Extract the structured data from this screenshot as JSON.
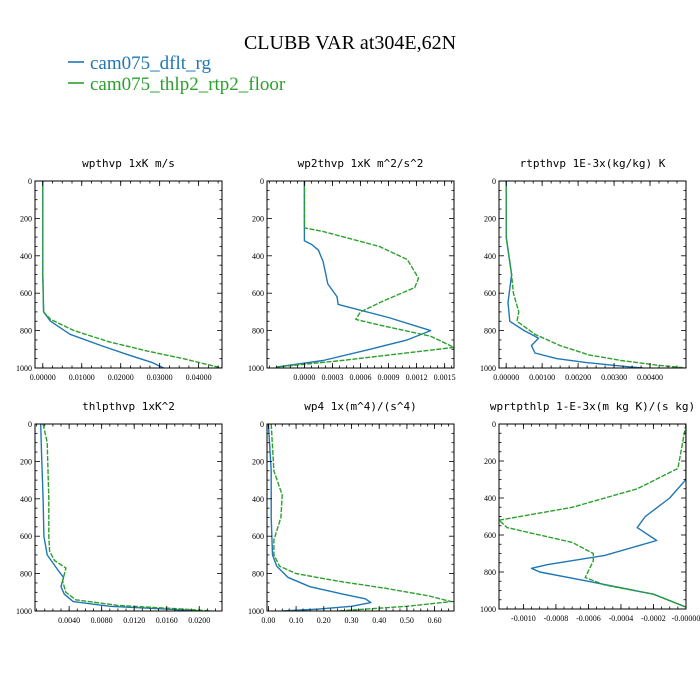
{
  "title": "CLUBB VAR at304E,62N",
  "legend": [
    {
      "label": "cam075_dflt_rg",
      "color": "#1f77b4"
    },
    {
      "label": "cam075_thlp2_rtp2_floor",
      "color": "#2ca02c"
    }
  ],
  "chart_data": [
    {
      "type": "line",
      "title": "wpthvp   1xK m/s",
      "ylim": [
        1000,
        0
      ],
      "yticks": [
        "0",
        "200",
        "400",
        "600",
        "800",
        "1000"
      ],
      "xlim": [
        -0.002,
        0.046
      ],
      "xticks": [
        0,
        0.01,
        0.02,
        0.03,
        0.04
      ],
      "xtick_labels": [
        "0.00000",
        "0.01000",
        "0.02000",
        "0.03000",
        "0.04000"
      ],
      "series": [
        {
          "color": "#1f77b4",
          "x": [
            0,
            0,
            0,
            0.0002,
            0.002,
            0.007,
            0.015,
            0.022,
            0.028,
            0.031
          ],
          "y": [
            0,
            200,
            500,
            700,
            750,
            820,
            880,
            930,
            970,
            1000
          ]
        },
        {
          "color": "#2ca02c",
          "x": [
            0,
            0,
            0,
            0.0002,
            0.002,
            0.008,
            0.017,
            0.027,
            0.036,
            0.043,
            0.046
          ],
          "y": [
            0,
            200,
            500,
            700,
            740,
            800,
            860,
            910,
            950,
            985,
            1000
          ]
        }
      ]
    },
    {
      "type": "line",
      "title": "wp2thvp   1xK m^2/s^2",
      "ylim": [
        1000,
        0
      ],
      "yticks": [
        "0",
        "200",
        "400",
        "600",
        "800",
        "1000"
      ],
      "xlim": [
        -0.0004,
        0.0016
      ],
      "xticks": [
        0,
        0.0003,
        0.0006,
        0.0009,
        0.0012,
        0.0015
      ],
      "xtick_labels": [
        "0.0000",
        "0.0003",
        "0.0006",
        "0.0009",
        "0.0012",
        "0.0015"
      ],
      "series": [
        {
          "color": "#1f77b4",
          "x": [
            0,
            0,
            8e-05,
            0.00015,
            0.0002,
            0.00025,
            0.00035,
            0.00036,
            0.0009,
            0.00135,
            0.0011,
            0.0007,
            0.0002,
            -0.0003
          ],
          "y": [
            0,
            320,
            340,
            370,
            430,
            550,
            620,
            660,
            730,
            800,
            850,
            900,
            960,
            995
          ]
        },
        {
          "color": "#2ca02c",
          "x": [
            0,
            0,
            0.0002,
            0.0008,
            0.0011,
            0.00122,
            0.00118,
            0.00085,
            0.0006,
            0.00055,
            0.0008,
            0.00135,
            0.0016,
            0.0004,
            -0.0003
          ],
          "y": [
            0,
            250,
            270,
            350,
            420,
            520,
            570,
            640,
            700,
            740,
            770,
            830,
            890,
            960,
            995
          ]
        }
      ]
    },
    {
      "type": "line",
      "title": "rtpthvp   1E-3x(kg/kg) K",
      "ylim": [
        1000,
        0
      ],
      "yticks": [
        "0",
        "200",
        "400",
        "600",
        "800",
        "1000"
      ],
      "xlim": [
        -0.0002,
        0.005
      ],
      "xticks": [
        0,
        0.001,
        0.002,
        0.003,
        0.004
      ],
      "xtick_labels": [
        "0.00000",
        "0.00100",
        "0.00200",
        "0.00300",
        "0.00400"
      ],
      "series": [
        {
          "color": "#1f77b4",
          "x": [
            0,
            0,
            0.00015,
            5e-05,
            0.0001,
            0.0005,
            0.0009,
            0.0007,
            0.0008,
            0.0014,
            0.0022,
            0.0032,
            0.0038
          ],
          "y": [
            0,
            300,
            500,
            650,
            750,
            800,
            840,
            880,
            920,
            950,
            970,
            990,
            1000
          ]
        },
        {
          "color": "#2ca02c",
          "x": [
            0,
            0,
            0.00015,
            0.0002,
            0.00035,
            0.0003,
            0.0008,
            0.0015,
            0.0023,
            0.0032,
            0.0042,
            0.005
          ],
          "y": [
            0,
            300,
            500,
            600,
            700,
            750,
            820,
            880,
            930,
            960,
            985,
            1000
          ]
        }
      ]
    },
    {
      "type": "line",
      "title": "thlpthvp   1xK^2",
      "ylim": [
        1000,
        0
      ],
      "yticks": [
        "0",
        "200",
        "400",
        "600",
        "800",
        "1000"
      ],
      "xlim": [
        -0.0002,
        0.0228
      ],
      "xticks": [
        0.004,
        0.008,
        0.012,
        0.016,
        0.02
      ],
      "xtick_labels": [
        "0.0040",
        "0.0080",
        "0.0120",
        "0.0160",
        "0.0200"
      ],
      "series": [
        {
          "color": "#1f77b4",
          "x": [
            0.0005,
            0.0006,
            0.0008,
            0.0009,
            0.0013,
            0.0026,
            0.0033,
            0.003,
            0.0034,
            0.0045,
            0.009,
            0.016,
            0.02
          ],
          "y": [
            0,
            150,
            400,
            600,
            700,
            780,
            820,
            870,
            910,
            950,
            975,
            990,
            1000
          ]
        },
        {
          "color": "#2ca02c",
          "x": [
            0.0008,
            0.0013,
            0.0015,
            0.0015,
            0.0016,
            0.0022,
            0.0036,
            0.0032,
            0.0036,
            0.0048,
            0.01,
            0.018,
            0.0215
          ],
          "y": [
            0,
            100,
            400,
            600,
            680,
            730,
            770,
            840,
            900,
            940,
            970,
            990,
            1000
          ]
        }
      ]
    },
    {
      "type": "line",
      "title": "wp4   1x(m^4)/(s^4)",
      "ylim": [
        1000,
        0
      ],
      "yticks": [
        "0",
        "200",
        "400",
        "600",
        "800",
        "1000"
      ],
      "xlim": [
        -0.005,
        0.67
      ],
      "xticks": [
        0,
        0.1,
        0.2,
        0.3,
        0.4,
        0.5,
        0.6
      ],
      "xtick_labels": [
        "0.00",
        "0.10",
        "0.20",
        "0.30",
        "0.40",
        "0.50",
        "0.60"
      ],
      "series": [
        {
          "color": "#1f77b4",
          "x": [
            0,
            0.01,
            0.01,
            0.015,
            0.03,
            0.07,
            0.15,
            0.27,
            0.35,
            0.37,
            0.3,
            0.18,
            0.05
          ],
          "y": [
            0,
            250,
            500,
            700,
            760,
            820,
            870,
            910,
            935,
            955,
            975,
            990,
            1000
          ]
        },
        {
          "color": "#2ca02c",
          "x": [
            0.01,
            0.02,
            0.05,
            0.045,
            0.02,
            0.02,
            0.04,
            0.1,
            0.25,
            0.43,
            0.58,
            0.66,
            0.5,
            0.25
          ],
          "y": [
            0,
            250,
            380,
            500,
            620,
            700,
            760,
            800,
            840,
            880,
            920,
            950,
            975,
            1000
          ]
        }
      ]
    },
    {
      "type": "line",
      "title": "wprtpthlp   1-E-3x(m kg K)/(s kg)",
      "ylim": [
        1000,
        0
      ],
      "yticks": [
        "0",
        "200",
        "400",
        "600",
        "800",
        "1000"
      ],
      "xlim": [
        -0.00115,
        0.0
      ],
      "xticks": [
        -0.001,
        -0.0008,
        -0.0006,
        -0.0004,
        -0.0002,
        0.0
      ],
      "xtick_labels": [
        "-0.0010",
        "-0.0008",
        "-0.0006",
        "-0.0004",
        "-0.0002",
        "-0.00000"
      ],
      "series": [
        {
          "color": "#1f77b4",
          "x": [
            0,
            0,
            -0.0001,
            -0.00025,
            -0.0003,
            -0.00018,
            -0.0005,
            -0.00085,
            -0.00095,
            -0.0009,
            -0.0006,
            -0.0002,
            0
          ],
          "y": [
            0,
            300,
            400,
            500,
            560,
            630,
            710,
            760,
            780,
            800,
            850,
            920,
            990
          ]
        },
        {
          "color": "#2ca02c",
          "x": [
            0,
            -5e-05,
            -0.0003,
            -0.0007,
            -0.00115,
            -0.0011,
            -0.0007,
            -0.00057,
            -0.00057,
            -0.00062,
            -0.0005,
            -0.0002,
            0
          ],
          "y": [
            0,
            240,
            350,
            450,
            520,
            560,
            640,
            700,
            740,
            830,
            870,
            920,
            990
          ]
        }
      ]
    }
  ]
}
